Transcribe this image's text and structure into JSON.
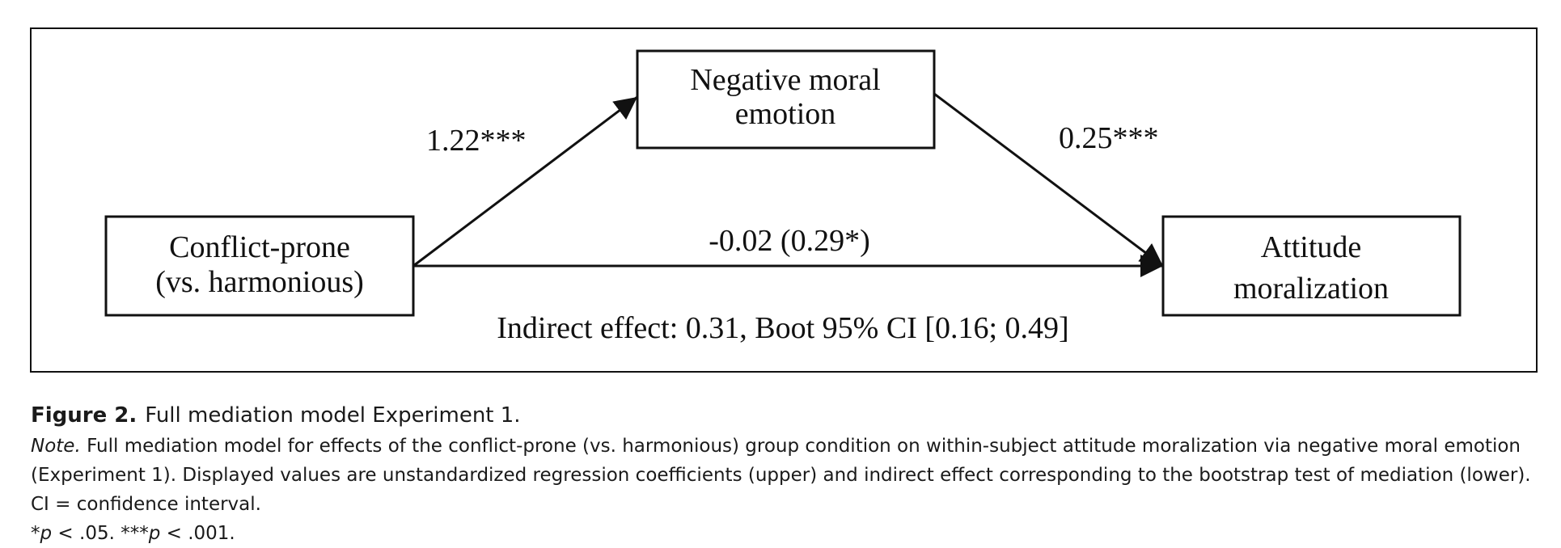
{
  "diagram": {
    "nodes": {
      "predictor": {
        "line1": "Conflict-prone",
        "line2": "(vs. harmonious)"
      },
      "mediator": {
        "line1": "Negative moral",
        "line2": "emotion"
      },
      "outcome": {
        "line1": "Attitude",
        "line2": "moralization"
      }
    },
    "paths": {
      "a": "1.22***",
      "b": "0.25***",
      "c": "-0.02 (0.29*)"
    },
    "indirect_effect": "Indirect effect: 0.31, Boot 95% CI [0.16; 0.49]"
  },
  "caption": {
    "figure_label": "Figure 2.",
    "figure_title": "Full mediation model Experiment 1.",
    "note_label": "Note.",
    "note_text": "Full mediation model for effects of the conflict-prone (vs. harmonious) group condition on within-subject attitude moralization via negative moral emotion (Experiment 1). Displayed values are unstandardized regression coefficients (upper) and indirect effect corresponding to the bootstrap test of mediation (lower). CI = confidence interval.",
    "sig1_star": "*",
    "sig1_p": "p",
    "sig1_rest": " < .05. ",
    "sig2_star": "***",
    "sig2_p": "p",
    "sig2_rest": " < .001."
  }
}
